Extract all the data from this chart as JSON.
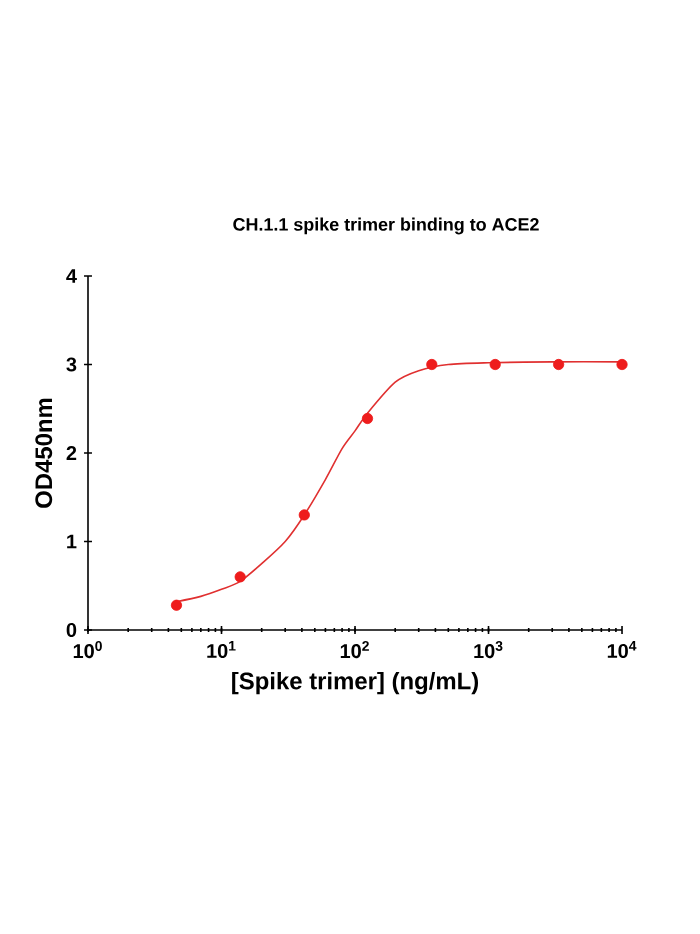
{
  "chart_data": {
    "type": "scatter",
    "title": "CH.1.1 spike trimer binding to ACE2",
    "xlabel": "[Spike trimer] (ng/mL)",
    "ylabel": "OD450nm",
    "log": "x",
    "xlim": [
      1,
      10000
    ],
    "xticks": [
      {
        "value": 1,
        "label": "10$^{0}$"
      },
      {
        "value": 10,
        "label": "10$^{1}$"
      },
      {
        "value": 100,
        "label": "10$^{2}$"
      },
      {
        "value": 1000,
        "label": "10$^{3}$"
      },
      {
        "value": 10000,
        "label": "10$^{4}$"
      }
    ],
    "ylim": [
      0,
      4
    ],
    "yticks": [
      0,
      1,
      2,
      3,
      4
    ],
    "grid": false,
    "series": [
      {
        "marker": "circle",
        "color": "#ee1c1c",
        "x": [
          4.6,
          13.8,
          41.7,
          124,
          376,
          1122,
          3350,
          10000
        ],
        "values": [
          0.28,
          0.6,
          1.3,
          2.39,
          3.0,
          3.0,
          3.0,
          3.0
        ]
      },
      {
        "type": "line",
        "color": "#e03030",
        "marker": "none",
        "x": [
          4.6,
          7,
          10,
          13.8,
          20,
          30,
          41.7,
          60,
          80,
          100,
          124,
          200,
          300,
          500,
          1000,
          3000,
          10000
        ],
        "values": [
          0.32,
          0.38,
          0.46,
          0.55,
          0.75,
          1.0,
          1.3,
          1.7,
          2.05,
          2.25,
          2.45,
          2.8,
          2.93,
          3.0,
          3.02,
          3.03,
          3.03
        ]
      }
    ]
  }
}
